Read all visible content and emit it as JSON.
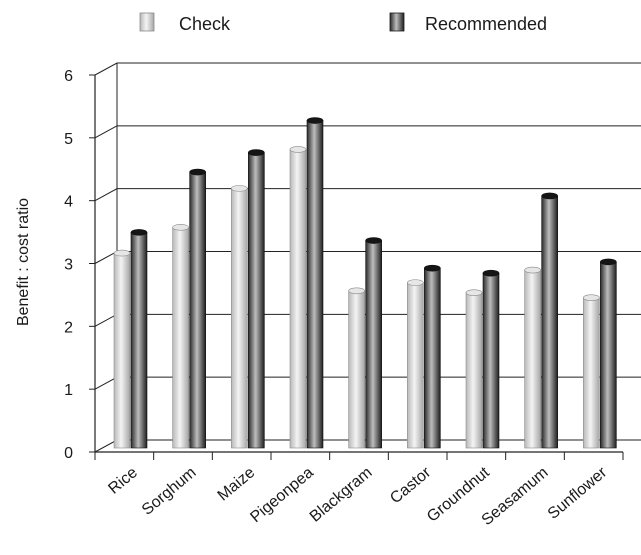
{
  "chart_data": {
    "type": "bar",
    "title": "",
    "xlabel": "",
    "ylabel": "Benefit : cost ratio",
    "ylim": [
      0,
      6
    ],
    "yticks": [
      0,
      1,
      2,
      3,
      4,
      5,
      6
    ],
    "grid": true,
    "legend_position": "top",
    "categories": [
      "Rice",
      "Sorghum",
      "Maize",
      "Pigeonpea",
      "Blackgram",
      "Castor",
      "Groundnut",
      "Seasamum",
      "Sunflower"
    ],
    "series": [
      {
        "name": "Check",
        "color": "#c8c8c8",
        "values": [
          3.07,
          3.48,
          4.1,
          4.72,
          2.47,
          2.6,
          2.44,
          2.8,
          2.36
        ]
      },
      {
        "name": "Recommended",
        "color": "#3a3a3a",
        "values": [
          3.4,
          4.36,
          4.67,
          5.18,
          3.27,
          2.83,
          2.75,
          3.98,
          2.93
        ]
      }
    ]
  }
}
